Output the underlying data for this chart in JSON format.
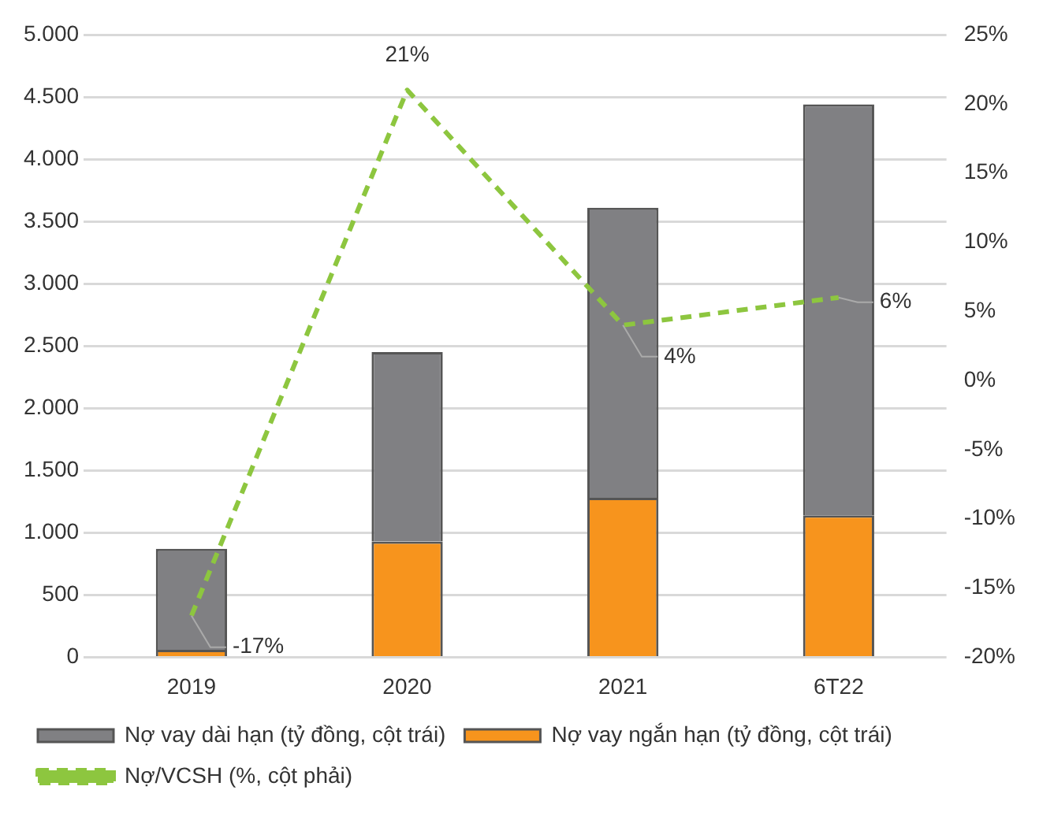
{
  "chart_data": {
    "type": "bar",
    "stacked": true,
    "categories": [
      "2019",
      "2020",
      "2021",
      "6T22"
    ],
    "series": [
      {
        "name": "Nợ vay ngắn hạn (tỷ đồng, cột trái)",
        "color": "#f7941d",
        "values": [
          60,
          930,
          1280,
          1140
        ]
      },
      {
        "name": "Nợ vay dài hạn (tỷ đồng, cột trái)",
        "color": "#808083",
        "values": [
          810,
          1520,
          2330,
          3300
        ]
      },
      {
        "name": "Nợ/VCSH (%, cột phải)",
        "type": "line",
        "axis": "y2",
        "color": "#8dc63f",
        "line_style": "dashed",
        "marker": "none",
        "values": [
          -17,
          21,
          4,
          6
        ],
        "value_labels": [
          "-17%",
          "21%",
          "4%",
          "6%"
        ]
      }
    ],
    "ylim": [
      0,
      5000
    ],
    "yticks": [
      {
        "value": 0,
        "label": "0"
      },
      {
        "value": 500,
        "label": "500"
      },
      {
        "value": 1000,
        "label": "1.000"
      },
      {
        "value": 1500,
        "label": "1.500"
      },
      {
        "value": 2000,
        "label": "2.000"
      },
      {
        "value": 2500,
        "label": "2.500"
      },
      {
        "value": 3000,
        "label": "3.000"
      },
      {
        "value": 3500,
        "label": "3.500"
      },
      {
        "value": 4000,
        "label": "4.000"
      },
      {
        "value": 4500,
        "label": "4.500"
      },
      {
        "value": 5000,
        "label": "5.000"
      }
    ],
    "y2lim": [
      -20,
      25
    ],
    "y2ticks": [
      {
        "value": -20,
        "label": "-20%"
      },
      {
        "value": -15,
        "label": "-15%"
      },
      {
        "value": -10,
        "label": "-10%"
      },
      {
        "value": -5,
        "label": "-5%"
      },
      {
        "value": 0,
        "label": "0%"
      },
      {
        "value": 5,
        "label": "5%"
      },
      {
        "value": 10,
        "label": "10%"
      },
      {
        "value": 15,
        "label": "15%"
      },
      {
        "value": 20,
        "label": "20%"
      },
      {
        "value": 25,
        "label": "25%"
      }
    ],
    "grid": "y",
    "legend": "bottom"
  }
}
